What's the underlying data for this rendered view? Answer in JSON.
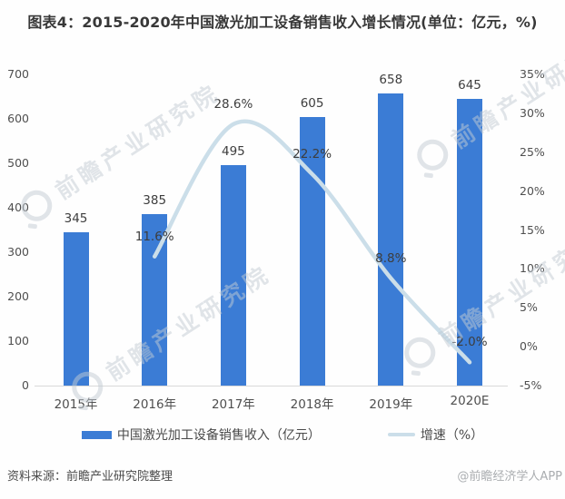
{
  "title": "图表4：2015-2020年中国激光加工设备销售收入增长情况(单位：亿元，%)",
  "chart_data": {
    "type": "bar+line",
    "title": "图表4：2015-2020年中国激光加工设备销售收入增长情况(单位：亿元，%)",
    "categories": [
      "2015年",
      "2016年",
      "2017年",
      "2018年",
      "2019年",
      "2020E"
    ],
    "series": [
      {
        "name": "中国激光加工设备销售收入（亿元）",
        "type": "bar",
        "axis": "left",
        "values": [
          345,
          385,
          495,
          605,
          658,
          645
        ],
        "labels": [
          "345",
          "385",
          "495",
          "605",
          "658",
          "645"
        ]
      },
      {
        "name": "增速（%）",
        "type": "line",
        "axis": "right",
        "values": [
          null,
          11.6,
          28.6,
          22.2,
          8.8,
          -2.0
        ],
        "labels": [
          "",
          "11.6%",
          "28.6%",
          "22.2%",
          "8.8%",
          "-2.0%"
        ]
      }
    ],
    "left_axis": {
      "min": 0,
      "max": 700,
      "step": 100,
      "ticks": [
        "0",
        "100",
        "200",
        "300",
        "400",
        "500",
        "600",
        "700"
      ]
    },
    "right_axis": {
      "min": -5,
      "max": 35,
      "step": 5,
      "ticks": [
        "-5%",
        "0%",
        "5%",
        "10%",
        "15%",
        "20%",
        "25%",
        "30%",
        "35%"
      ]
    },
    "grid": false,
    "legend_position": "bottom"
  },
  "legend": [
    {
      "label": "中国激光加工设备销售收入（亿元）",
      "swatch": "bar"
    },
    {
      "label": "增速（%）",
      "swatch": "line"
    }
  ],
  "footer": {
    "source": "资料来源：前瞻产业研究院整理",
    "credit": "@前瞻经济学人APP"
  },
  "watermark": {
    "text": "前瞻产业研究院"
  },
  "colors": {
    "bar": "#3B7CD5",
    "line": "#CBDEE9",
    "title_text": "#383838",
    "axis_text": "#4f4f4f",
    "label_text": "#3d3d3d",
    "axis_line": "#d9d9d9",
    "source_text": "#4a4a4a",
    "credit_text": "#aaadb0",
    "watermark": "#c3ccd4"
  }
}
